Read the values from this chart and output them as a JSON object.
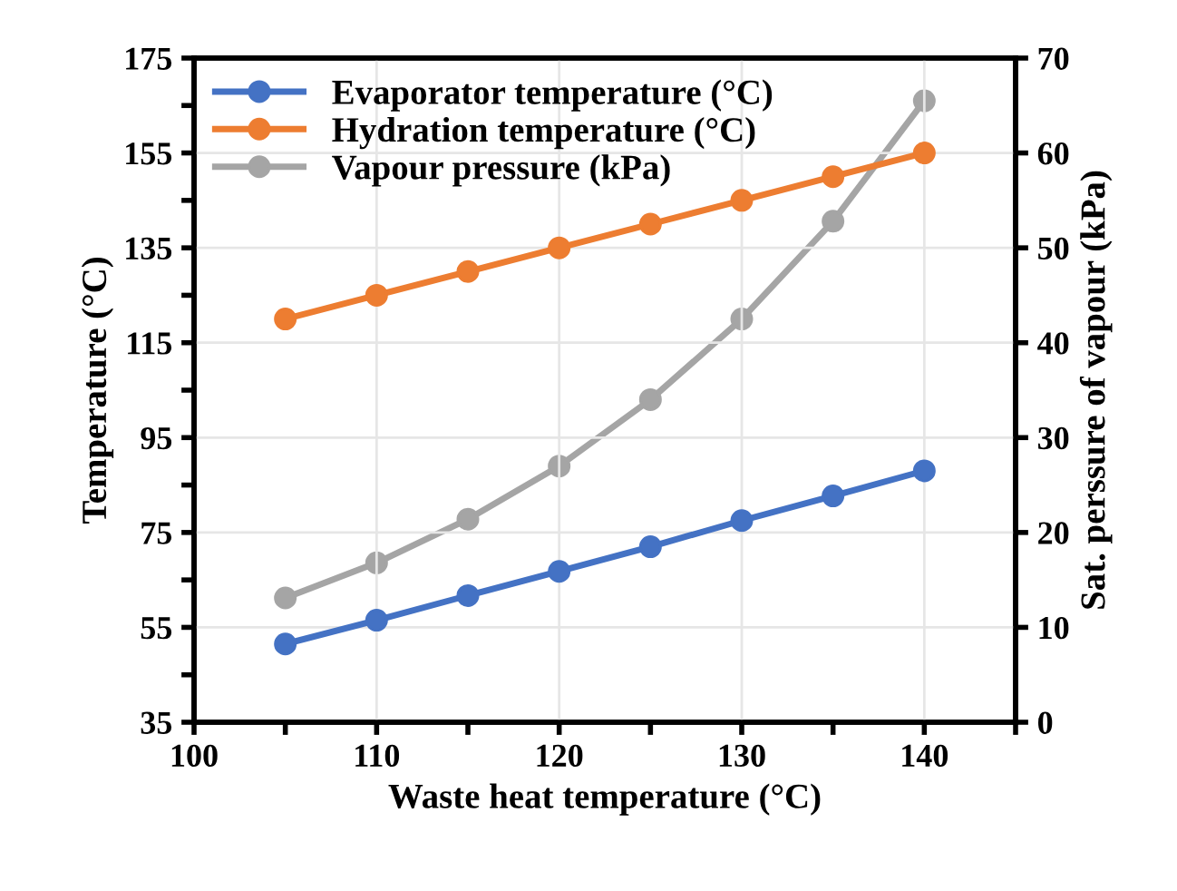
{
  "chart_data": {
    "type": "line",
    "xlabel": "Waste heat temperature (°C)",
    "ylabel": "Temperature (°C)",
    "y2label": "Sat. perssure of vapour (kPa)",
    "x": [
      105,
      110,
      115,
      120,
      125,
      130,
      135,
      140
    ],
    "series": [
      {
        "name": "Evaporator temperature (°C)",
        "color": "#4472c4",
        "values": [
          51.5,
          56.5,
          61.7,
          66.8,
          72,
          77.5,
          82.7,
          88
        ]
      },
      {
        "name": "Hydration temperature (°C)",
        "color": "#ed7d31",
        "values": [
          120,
          125,
          130,
          135,
          140,
          145,
          150,
          155
        ]
      },
      {
        "name": "Vapour pressure (kPa)",
        "color": "#a5a5a5",
        "axis": "y2",
        "values": [
          13.1,
          16.8,
          21.4,
          27,
          34,
          42.5,
          52.8,
          65.5
        ]
      }
    ],
    "xlim": [
      100,
      145
    ],
    "xticks": [
      100,
      {
        "value": 105,
        "label": null
      },
      110,
      {
        "value": 115,
        "label": null
      },
      120,
      {
        "value": 125,
        "label": null
      },
      130,
      {
        "value": 135,
        "label": null
      },
      140,
      {
        "value": 145,
        "label": null
      }
    ],
    "ylim": [
      35,
      175
    ],
    "yticks": [
      35,
      {
        "value": 45,
        "label": null
      },
      55,
      {
        "value": 65,
        "label": null
      },
      75,
      {
        "value": 85,
        "label": null
      },
      95,
      {
        "value": 105,
        "label": null
      },
      115,
      {
        "value": 125,
        "label": null
      },
      135,
      {
        "value": 145,
        "label": null
      },
      155,
      {
        "value": 165,
        "label": null
      },
      175
    ],
    "y2lim": [
      0,
      70
    ],
    "y2ticks": [
      0,
      10,
      20,
      30,
      40,
      50,
      60,
      70
    ],
    "grid": true,
    "legend": "top left",
    "marker": "circle",
    "line_style": "solid"
  }
}
